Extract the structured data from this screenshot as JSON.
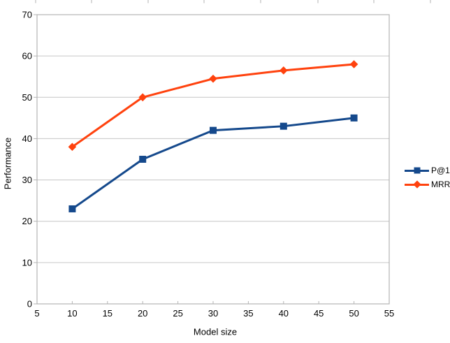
{
  "chart_data": {
    "type": "line",
    "title": "",
    "xlabel": "Model size",
    "ylabel": "Performance",
    "x": [
      10,
      20,
      30,
      40,
      50
    ],
    "series": [
      {
        "name": "P@1",
        "values": [
          23,
          35,
          42,
          43,
          45
        ],
        "color": "#15498c",
        "marker": "square"
      },
      {
        "name": "MRR",
        "values": [
          38,
          50,
          54.5,
          56.5,
          58
        ],
        "color": "#ff420e",
        "marker": "diamond"
      }
    ],
    "xlim": [
      5,
      55
    ],
    "ylim": [
      0,
      70
    ],
    "x_ticks": [
      5,
      10,
      15,
      20,
      25,
      30,
      35,
      40,
      45,
      50,
      55
    ],
    "y_ticks": [
      0,
      10,
      20,
      30,
      40,
      50,
      60,
      70
    ],
    "grid": "horizontal",
    "legend_position": "right",
    "colors": {
      "grid": "#c6c6c6",
      "border": "#b3b3b3",
      "tick": "#b3b3b3",
      "text": "#000000",
      "background": "#ffffff"
    }
  },
  "artifact": {
    "top_edge_tick_xs": [
      51,
      131,
      212,
      292,
      373,
      455,
      535,
      616
    ]
  }
}
